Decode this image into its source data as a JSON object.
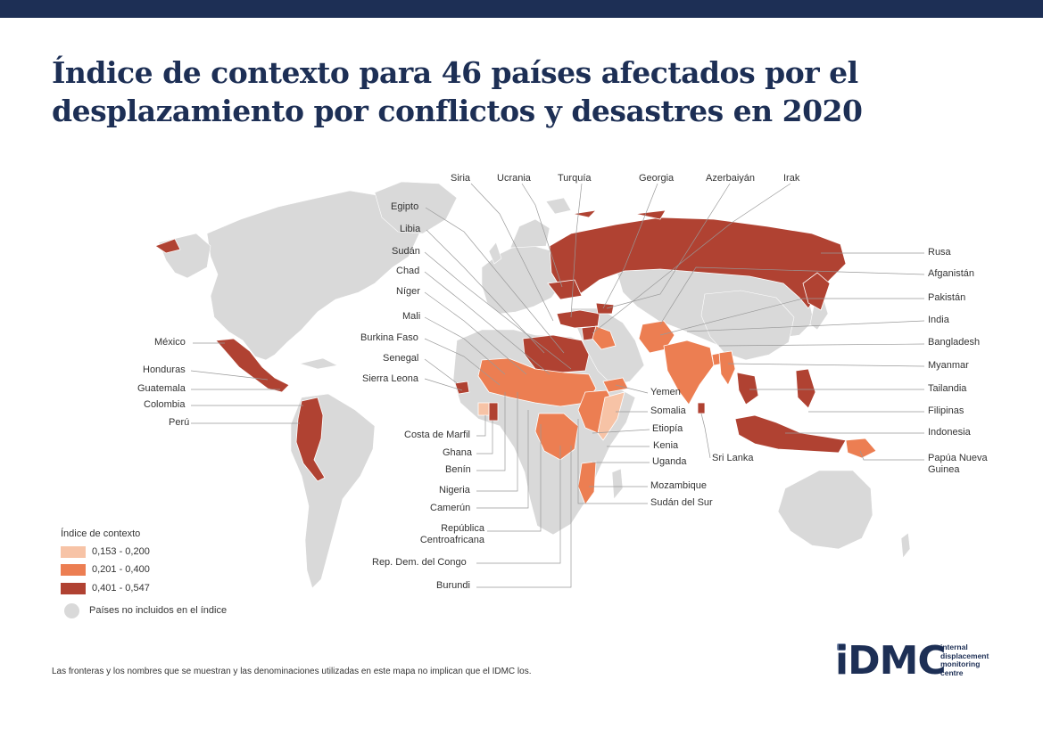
{
  "title": "Índice de contexto para 46 países afectados por el desplazamiento por conflictos y desastres en 2020",
  "colors": {
    "band_low": "#f7c3a6",
    "band_mid": "#ec7e52",
    "band_high": "#b04232",
    "not_included": "#d9d9d9",
    "header_bar": "#1d2f55",
    "leader_line": "#999999"
  },
  "labels": {
    "top": [
      "Siria",
      "Ucrania",
      "Turquía",
      "Georgia",
      "Azerbaiyán",
      "Irak"
    ],
    "left_upper": [
      "Egipto",
      "Libia",
      "Sudán",
      "Chad",
      "Níger",
      "Mali",
      "Burkina Faso",
      "Senegal",
      "Sierra Leona"
    ],
    "americas": [
      "México",
      "Honduras",
      "Guatemala",
      "Colombia",
      "Perú"
    ],
    "right": [
      "Rusa",
      "Afganistán",
      "Pakistán",
      "India",
      "Bangladesh",
      "Myanmar",
      "Tailandia",
      "Filipinas",
      "Indonesia",
      "Papúa Nueva Guinea"
    ],
    "middle_right": [
      "Yemen",
      "Somalia",
      "Etiopía",
      "Kenia",
      "Uganda",
      "Sri Lanka",
      "Mozambique",
      "Sudán del Sur"
    ],
    "bottom_left": [
      "Costa de Marfil",
      "Ghana",
      "Benín",
      "Nigeria",
      "Camerún",
      "República Centroafricana",
      "Rep. Dem. del Congo",
      "Burundi"
    ]
  },
  "legend": {
    "title": "Índice de contexto",
    "items": [
      {
        "label": "0,153 - 0,200",
        "color": "#f7c3a6"
      },
      {
        "label": "0,201 - 0,400",
        "color": "#ec7e52"
      },
      {
        "label": "0,401 - 0,547",
        "color": "#b04232"
      }
    ],
    "not_included": "Países no incluidos en el índice"
  },
  "disclaimer": "Las fronteras y los nombres que se muestran y las denominaciones utilizadas en este mapa no implican que el IDMC los.",
  "logo": {
    "mark": "iDMC",
    "line1": "internal",
    "line2": "displacement",
    "line3": "monitoring",
    "line4": "centre"
  }
}
